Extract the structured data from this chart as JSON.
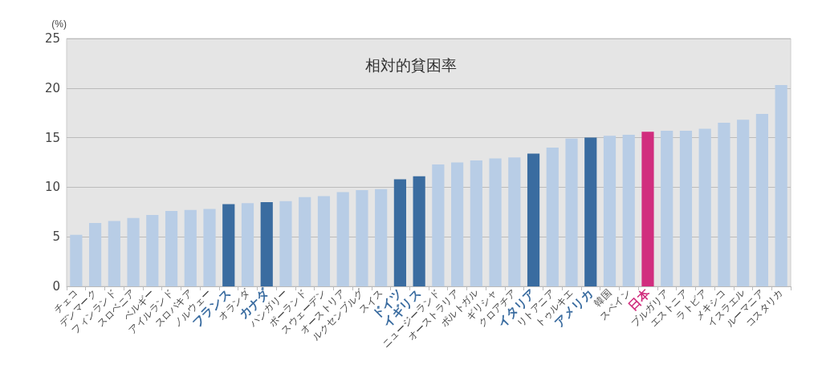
{
  "chart_data": {
    "type": "bar",
    "title": "相対的貧困率",
    "ylabel": "(%)",
    "categories": [
      "チェコ",
      "デンマーク",
      "フィンランド",
      "スロベニア",
      "ベルギー",
      "アイルランド",
      "スロバキア",
      "ノルウェー",
      "フランス",
      "オランダ",
      "カナダ",
      "ハンガリー",
      "ポーランド",
      "スウェーデン",
      "オーストリア",
      "ルクセンブルグ",
      "スイス",
      "ドイツ",
      "イギリス",
      "ニュージーランド",
      "オーストラリア",
      "ポルトガル",
      "ギリシャ",
      "クロアチア",
      "イタリア",
      "リトアニア",
      "トゥルキエ",
      "アメリカ",
      "韓国",
      "スペイン",
      "日本",
      "ブルガリア",
      "エストニア",
      "ラトビア",
      "メキシコ",
      "イスラエル",
      "ルーマニア",
      "コスタリカ"
    ],
    "values": [
      5.2,
      6.4,
      6.6,
      6.9,
      7.2,
      7.6,
      7.7,
      7.8,
      8.3,
      8.4,
      8.5,
      8.6,
      9.0,
      9.1,
      9.5,
      9.7,
      9.8,
      10.8,
      11.1,
      12.3,
      12.5,
      12.7,
      12.9,
      13.0,
      13.4,
      14.0,
      14.9,
      15.0,
      15.2,
      15.3,
      15.6,
      15.7,
      15.7,
      15.9,
      16.5,
      16.8,
      17.4,
      20.3
    ],
    "colors": [
      "#b8cde6",
      "#b8cde6",
      "#b8cde6",
      "#b8cde6",
      "#b8cde6",
      "#b8cde6",
      "#b8cde6",
      "#b8cde6",
      "#3a6ca0",
      "#b8cde6",
      "#3a6ca0",
      "#b8cde6",
      "#b8cde6",
      "#b8cde6",
      "#b8cde6",
      "#b8cde6",
      "#b8cde6",
      "#3a6ca0",
      "#3a6ca0",
      "#b8cde6",
      "#b8cde6",
      "#b8cde6",
      "#b8cde6",
      "#b8cde6",
      "#3a6ca0",
      "#b8cde6",
      "#b8cde6",
      "#3a6ca0",
      "#b8cde6",
      "#b8cde6",
      "#d12e7e",
      "#b8cde6",
      "#b8cde6",
      "#b8cde6",
      "#b8cde6",
      "#b8cde6",
      "#b8cde6",
      "#b8cde6"
    ],
    "ylim": [
      0,
      25
    ],
    "yticks": [
      0,
      5,
      10,
      15,
      20,
      25
    ],
    "grid": "y"
  }
}
